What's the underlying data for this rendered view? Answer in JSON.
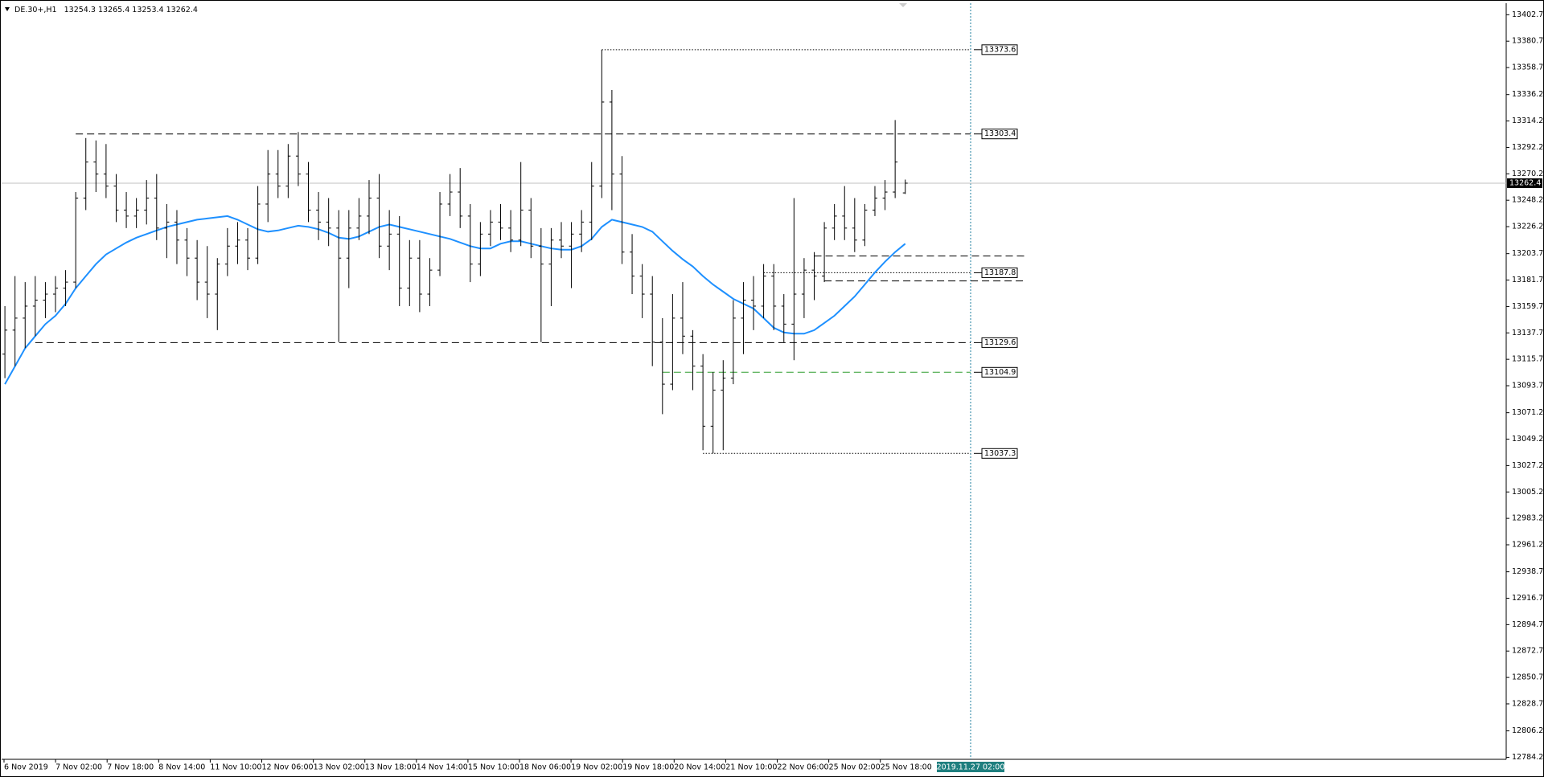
{
  "chart_data": {
    "type": "ohlc",
    "title": "DE.30+,H1",
    "ylim": [
      12782.5,
      13412.3
    ],
    "yticks": [
      13402.7,
      13380.7,
      13358.7,
      13336.2,
      13314.2,
      13292.2,
      13270.2,
      13248.2,
      13226.2,
      13203.7,
      13181.7,
      13159.7,
      13137.7,
      13115.7,
      13093.7,
      13071.2,
      13049.2,
      13027.2,
      13005.2,
      12983.2,
      12961.2,
      12938.7,
      12916.7,
      12894.7,
      12872.7,
      12850.7,
      12828.7,
      12806.2,
      12784.2
    ],
    "time_labels": [
      "6 Nov 2019",
      "7 Nov 02:00",
      "7 Nov 18:00",
      "8 Nov 14:00",
      "11 Nov 10:00",
      "12 Nov 06:00",
      "13 Nov 02:00",
      "13 Nov 18:00",
      "14 Nov 14:00",
      "15 Nov 10:00",
      "18 Nov 06:00",
      "19 Nov 02:00",
      "19 Nov 18:00",
      "20 Nov 14:00",
      "21 Nov 10:00",
      "22 Nov 06:00",
      "25 Nov 02:00",
      "25 Nov 18:00"
    ],
    "cursor_label": "2019.11.27 02:00",
    "bar_color": "#000000",
    "ohlc": [
      [
        13120,
        13160,
        13100,
        13140
      ],
      [
        13140,
        13185,
        13110,
        13150
      ],
      [
        13150,
        13180,
        13125,
        13160
      ],
      [
        13160,
        13185,
        13135,
        13165
      ],
      [
        13165,
        13180,
        13150,
        13170
      ],
      [
        13170,
        13185,
        13155,
        13175
      ],
      [
        13175,
        13190,
        13160,
        13180
      ],
      [
        13180,
        13255,
        13175,
        13250
      ],
      [
        13250,
        13300,
        13240,
        13280
      ],
      [
        13280,
        13298,
        13255,
        13270
      ],
      [
        13270,
        13295,
        13250,
        13260
      ],
      [
        13260,
        13270,
        13230,
        13240
      ],
      [
        13240,
        13255,
        13225,
        13235
      ],
      [
        13235,
        13250,
        13225,
        13240
      ],
      [
        13240,
        13265,
        13228,
        13250
      ],
      [
        13250,
        13270,
        13215,
        13225
      ],
      [
        13225,
        13245,
        13200,
        13230
      ],
      [
        13230,
        13240,
        13195,
        13215
      ],
      [
        13215,
        13225,
        13185,
        13200
      ],
      [
        13200,
        13215,
        13165,
        13180
      ],
      [
        13180,
        13210,
        13150,
        13170
      ],
      [
        13170,
        13200,
        13140,
        13195
      ],
      [
        13195,
        13225,
        13185,
        13210
      ],
      [
        13210,
        13230,
        13195,
        13215
      ],
      [
        13215,
        13225,
        13190,
        13200
      ],
      [
        13200,
        13260,
        13195,
        13245
      ],
      [
        13245,
        13290,
        13230,
        13270
      ],
      [
        13270,
        13290,
        13250,
        13260
      ],
      [
        13260,
        13295,
        13250,
        13285
      ],
      [
        13285,
        13305,
        13260,
        13270
      ],
      [
        13270,
        13280,
        13230,
        13240
      ],
      [
        13240,
        13255,
        13215,
        13230
      ],
      [
        13230,
        13250,
        13210,
        13225
      ],
      [
        13225,
        13240,
        13130,
        13200
      ],
      [
        13200,
        13240,
        13175,
        13225
      ],
      [
        13225,
        13250,
        13215,
        13235
      ],
      [
        13235,
        13265,
        13220,
        13250
      ],
      [
        13250,
        13270,
        13200,
        13210
      ],
      [
        13210,
        13240,
        13190,
        13220
      ],
      [
        13220,
        13235,
        13160,
        13175
      ],
      [
        13175,
        13215,
        13160,
        13200
      ],
      [
        13200,
        13215,
        13155,
        13170
      ],
      [
        13170,
        13200,
        13160,
        13190
      ],
      [
        13190,
        13255,
        13185,
        13245
      ],
      [
        13245,
        13270,
        13235,
        13255
      ],
      [
        13255,
        13275,
        13225,
        13235
      ],
      [
        13235,
        13245,
        13180,
        13195
      ],
      [
        13195,
        13230,
        13185,
        13220
      ],
      [
        13220,
        13240,
        13210,
        13230
      ],
      [
        13230,
        13245,
        13215,
        13225
      ],
      [
        13225,
        13240,
        13205,
        13215
      ],
      [
        13215,
        13280,
        13210,
        13240
      ],
      [
        13240,
        13250,
        13200,
        13210
      ],
      [
        13210,
        13225,
        13130,
        13195
      ],
      [
        13195,
        13225,
        13160,
        13215
      ],
      [
        13215,
        13230,
        13200,
        13210
      ],
      [
        13210,
        13230,
        13175,
        13220
      ],
      [
        13220,
        13240,
        13205,
        13230
      ],
      [
        13230,
        13280,
        13215,
        13260
      ],
      [
        13260,
        13373.6,
        13250,
        13330
      ],
      [
        13330,
        13340,
        13240,
        13270
      ],
      [
        13270,
        13285,
        13195,
        13205
      ],
      [
        13205,
        13220,
        13170,
        13185
      ],
      [
        13185,
        13195,
        13150,
        13170
      ],
      [
        13170,
        13185,
        13110,
        13130
      ],
      [
        13130,
        13150,
        13070,
        13095
      ],
      [
        13095,
        13170,
        13090,
        13150
      ],
      [
        13150,
        13180,
        13120,
        13135
      ],
      [
        13135,
        13140,
        13090,
        13110
      ],
      [
        13110,
        13120,
        13040,
        13060
      ],
      [
        13060,
        13105,
        13037.3,
        13090
      ],
      [
        13090,
        13115,
        13040,
        13100
      ],
      [
        13100,
        13165,
        13095,
        13150
      ],
      [
        13150,
        13180,
        13120,
        13165
      ],
      [
        13165,
        13185,
        13140,
        13160
      ],
      [
        13160,
        13195,
        13150,
        13185
      ],
      [
        13185,
        13195,
        13140,
        13160
      ],
      [
        13160,
        13170,
        13130,
        13145
      ],
      [
        13145,
        13250,
        13115,
        13170
      ],
      [
        13170,
        13200,
        13150,
        13190
      ],
      [
        13190,
        13205,
        13165,
        13185
      ],
      [
        13185,
        13230,
        13180,
        13225
      ],
      [
        13225,
        13245,
        13215,
        13235
      ],
      [
        13235,
        13260,
        13215,
        13225
      ],
      [
        13225,
        13250,
        13205,
        13215
      ],
      [
        13215,
        13245,
        13210,
        13240
      ],
      [
        13240,
        13260,
        13235,
        13250
      ],
      [
        13250,
        13265,
        13240,
        13255
      ],
      [
        13255,
        13315,
        13250,
        13280
      ],
      [
        13254.3,
        13265.4,
        13253.4,
        13262.4
      ]
    ],
    "ma_color": "#1e90ff",
    "ma": [
      13095,
      13110,
      13125,
      13135,
      13145,
      13152,
      13162,
      13175,
      13185,
      13195,
      13203,
      13208,
      13213,
      13217,
      13220,
      13223,
      13226,
      13228,
      13230,
      13232,
      13233,
      13234,
      13235,
      13232,
      13228,
      13224,
      13222,
      13223,
      13225,
      13227,
      13226,
      13224,
      13221,
      13217,
      13216,
      13218,
      13222,
      13226,
      13228,
      13226,
      13224,
      13222,
      13220,
      13218,
      13216,
      13213,
      13210,
      13208,
      13208,
      13212,
      13214,
      13214,
      13212,
      13210,
      13208,
      13207,
      13207,
      13210,
      13216,
      13226,
      13232,
      13230,
      13228,
      13226,
      13222,
      13214,
      13206,
      13199,
      13193,
      13185,
      13178,
      13172,
      13166,
      13162,
      13158,
      13150,
      13142,
      13138,
      13137,
      13137,
      13140,
      13146,
      13152,
      13160,
      13168,
      13178,
      13188,
      13197,
      13205,
      13212
    ],
    "levels": [
      {
        "value": 13373.6,
        "style": "dotted",
        "color": "#000000",
        "start": 59,
        "label": true
      },
      {
        "value": 13303.4,
        "style": "dashed",
        "color": "#000000",
        "start": 7,
        "label": true
      },
      {
        "value": 13201.7,
        "style": "dashed",
        "color": "#000000",
        "start": 80,
        "label": false,
        "extended": true
      },
      {
        "value": 13187.8,
        "style": "dotted",
        "color": "#000000",
        "start": 75,
        "label": true
      },
      {
        "value": 13181.0,
        "style": "dashed",
        "color": "#000000",
        "start": 81,
        "label": false,
        "extended": true
      },
      {
        "value": 13129.6,
        "style": "dashed",
        "color": "#000000",
        "start": 3,
        "label": true
      },
      {
        "value": 13104.9,
        "style": "dashed",
        "color": "#2e9e2e",
        "start": 65,
        "label": true
      },
      {
        "value": 13037.3,
        "style": "dotted",
        "color": "#000000",
        "start": 69,
        "label": true
      }
    ]
  }
}
